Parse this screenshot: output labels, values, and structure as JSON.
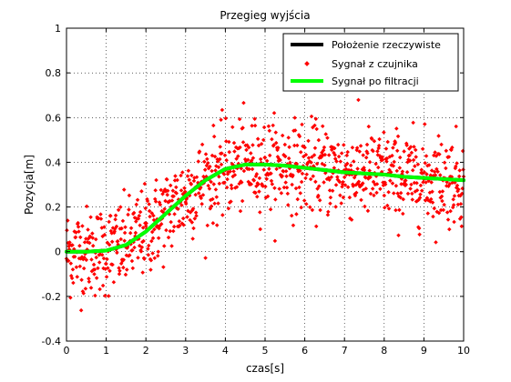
{
  "chart_data": {
    "type": "line",
    "title": "Przegieg wyjścia",
    "xlabel": "czas[s]",
    "ylabel": "Pozycja[m]",
    "xlim": [
      0,
      10
    ],
    "ylim": [
      -0.4,
      1
    ],
    "x_ticks": [
      0,
      1,
      2,
      3,
      4,
      5,
      6,
      7,
      8,
      9,
      10
    ],
    "y_ticks": [
      -0.4,
      -0.2,
      0,
      0.2,
      0.4,
      0.6,
      0.8,
      1
    ],
    "grid": true,
    "legend_position": "top-right",
    "noise_std": 0.1,
    "series": [
      {
        "name": "Położenie rzeczywiste",
        "style": "line",
        "color": "#000000",
        "x": [
          0,
          0.5,
          1.0,
          1.5,
          2.0,
          2.5,
          3.0,
          3.5,
          4.0,
          4.5,
          5.0,
          5.5,
          6.0,
          6.5,
          7.0,
          7.5,
          8.0,
          8.5,
          9.0,
          9.5,
          10.0
        ],
        "y": [
          0.0,
          0.0,
          0.005,
          0.03,
          0.09,
          0.17,
          0.25,
          0.32,
          0.37,
          0.39,
          0.39,
          0.385,
          0.375,
          0.365,
          0.355,
          0.35,
          0.345,
          0.335,
          0.33,
          0.325,
          0.32
        ]
      },
      {
        "name": "Sygnał z czujnika",
        "style": "markers",
        "color": "#ff0000",
        "x": [
          0,
          10
        ],
        "y": [
          0,
          0.32
        ]
      },
      {
        "name": "Sygnał po filtracji",
        "style": "line",
        "color": "#00ff00",
        "x": [
          0,
          0.5,
          1.0,
          1.5,
          2.0,
          2.5,
          3.0,
          3.5,
          4.0,
          4.5,
          5.0,
          5.5,
          6.0,
          6.5,
          7.0,
          7.5,
          8.0,
          8.5,
          9.0,
          9.5,
          10.0
        ],
        "y": [
          0.0,
          0.0,
          0.005,
          0.03,
          0.09,
          0.17,
          0.25,
          0.32,
          0.37,
          0.39,
          0.39,
          0.385,
          0.375,
          0.365,
          0.355,
          0.35,
          0.345,
          0.335,
          0.33,
          0.325,
          0.32
        ]
      }
    ]
  }
}
